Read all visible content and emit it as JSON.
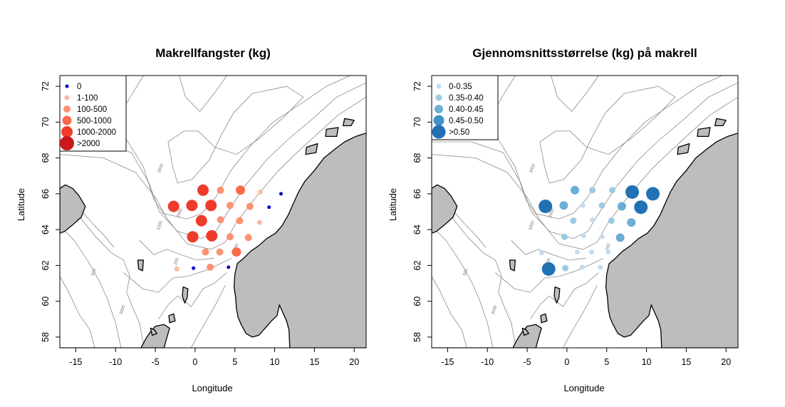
{
  "panels": [
    {
      "id": "catch",
      "title": "Makrellfangster (kg)",
      "xlabel": "Longitude",
      "ylabel": "Latitude",
      "legend": [
        {
          "label": "0",
          "color": "#0000cc",
          "r": 2.5
        },
        {
          "label": "1-100",
          "color": "#fcbba1",
          "r": 3.5
        },
        {
          "label": "100-500",
          "color": "#fc9272",
          "r": 5
        },
        {
          "label": "500-1000",
          "color": "#fb6a4a",
          "r": 6.5
        },
        {
          "label": "1000-2000",
          "color": "#ef3b2c",
          "r": 8
        },
        {
          "label": ">2000",
          "color": "#cb181d",
          "r": 10
        }
      ],
      "points": [
        {
          "lon": 1,
          "lat": 66.2,
          "c": 4
        },
        {
          "lon": 3.2,
          "lat": 66.2,
          "c": 2
        },
        {
          "lon": 5.7,
          "lat": 66.2,
          "c": 3
        },
        {
          "lon": 8.2,
          "lat": 66.1,
          "c": 1
        },
        {
          "lon": 10.8,
          "lat": 66.0,
          "c": 0
        },
        {
          "lon": -2.7,
          "lat": 65.3,
          "c": 4
        },
        {
          "lon": -0.4,
          "lat": 65.35,
          "c": 4
        },
        {
          "lon": 2,
          "lat": 65.35,
          "c": 4
        },
        {
          "lon": 4.4,
          "lat": 65.35,
          "c": 2
        },
        {
          "lon": 6.9,
          "lat": 65.3,
          "c": 2
        },
        {
          "lon": 9.3,
          "lat": 65.25,
          "c": 0
        },
        {
          "lon": 0.8,
          "lat": 64.5,
          "c": 4
        },
        {
          "lon": 3.2,
          "lat": 64.55,
          "c": 2
        },
        {
          "lon": 5.6,
          "lat": 64.5,
          "c": 2
        },
        {
          "lon": 8.1,
          "lat": 64.4,
          "c": 1
        },
        {
          "lon": -0.3,
          "lat": 63.6,
          "c": 4
        },
        {
          "lon": 2.1,
          "lat": 63.65,
          "c": 4
        },
        {
          "lon": 4.4,
          "lat": 63.6,
          "c": 2
        },
        {
          "lon": 6.7,
          "lat": 63.55,
          "c": 2
        },
        {
          "lon": 1.3,
          "lat": 62.75,
          "c": 2
        },
        {
          "lon": 3.1,
          "lat": 62.75,
          "c": 2
        },
        {
          "lon": 5.2,
          "lat": 62.75,
          "c": 3
        },
        {
          "lon": -2.3,
          "lat": 61.8,
          "c": 1
        },
        {
          "lon": -0.2,
          "lat": 61.85,
          "c": 0
        },
        {
          "lon": 1.9,
          "lat": 61.9,
          "c": 2
        },
        {
          "lon": 4.2,
          "lat": 61.9,
          "c": 0
        }
      ]
    },
    {
      "id": "size",
      "title": "Gjennomsnittsstørrelse (kg) på makrell",
      "xlabel": "Longitude",
      "ylabel": "Latitude",
      "legend": [
        {
          "label": "0-0.35",
          "color": "#c6dbef",
          "r": 3.5
        },
        {
          "label": "0.35-0.40",
          "color": "#9ecae1",
          "r": 4.5
        },
        {
          "label": "0.40-0.45",
          "color": "#6baed6",
          "r": 6
        },
        {
          "label": "0.45-0.50",
          "color": "#4292c6",
          "r": 7.5
        },
        {
          "label": ">0.50",
          "color": "#2171b5",
          "r": 9.5
        }
      ],
      "points": [
        {
          "lon": 1,
          "lat": 66.2,
          "c": 2
        },
        {
          "lon": 3.2,
          "lat": 66.2,
          "c": 1
        },
        {
          "lon": 5.7,
          "lat": 66.2,
          "c": 1
        },
        {
          "lon": 8.2,
          "lat": 66.1,
          "c": 4
        },
        {
          "lon": 10.8,
          "lat": 66.0,
          "c": 4
        },
        {
          "lon": -2.7,
          "lat": 65.3,
          "c": 4
        },
        {
          "lon": -0.4,
          "lat": 65.35,
          "c": 2
        },
        {
          "lon": 2,
          "lat": 65.35,
          "c": 0
        },
        {
          "lon": 4.4,
          "lat": 65.35,
          "c": 1
        },
        {
          "lon": 6.9,
          "lat": 65.3,
          "c": 2
        },
        {
          "lon": 9.3,
          "lat": 65.25,
          "c": 4
        },
        {
          "lon": 0.8,
          "lat": 64.5,
          "c": 1
        },
        {
          "lon": 3.2,
          "lat": 64.55,
          "c": 0
        },
        {
          "lon": 5.6,
          "lat": 64.5,
          "c": 1
        },
        {
          "lon": 8.1,
          "lat": 64.4,
          "c": 2
        },
        {
          "lon": -0.3,
          "lat": 63.6,
          "c": 1
        },
        {
          "lon": 2.1,
          "lat": 63.65,
          "c": 0
        },
        {
          "lon": 4.4,
          "lat": 63.6,
          "c": 0
        },
        {
          "lon": 6.7,
          "lat": 63.55,
          "c": 2
        },
        {
          "lon": 1.3,
          "lat": 62.75,
          "c": 0
        },
        {
          "lon": 3.1,
          "lat": 62.75,
          "c": 0
        },
        {
          "lon": 5.2,
          "lat": 62.75,
          "c": 0
        },
        {
          "lon": -3.2,
          "lat": 62.7,
          "c": 0
        },
        {
          "lon": -2.3,
          "lat": 61.8,
          "c": 4
        },
        {
          "lon": -0.2,
          "lat": 61.85,
          "c": 1
        },
        {
          "lon": 1.9,
          "lat": 61.9,
          "c": 0
        },
        {
          "lon": 4.2,
          "lat": 61.9,
          "c": 0
        }
      ]
    }
  ],
  "axes": {
    "xlim": [
      -17,
      21.5
    ],
    "ylim": [
      57.4,
      72.6
    ],
    "xticks": [
      "-15",
      "-10",
      "-5",
      "0",
      "5",
      "10",
      "15",
      "20"
    ],
    "yticks": [
      "58",
      "60",
      "62",
      "64",
      "66",
      "68",
      "70",
      "72"
    ]
  },
  "contour_labels": [
    "3000",
    "2000",
    "1000",
    "500",
    "200"
  ]
}
